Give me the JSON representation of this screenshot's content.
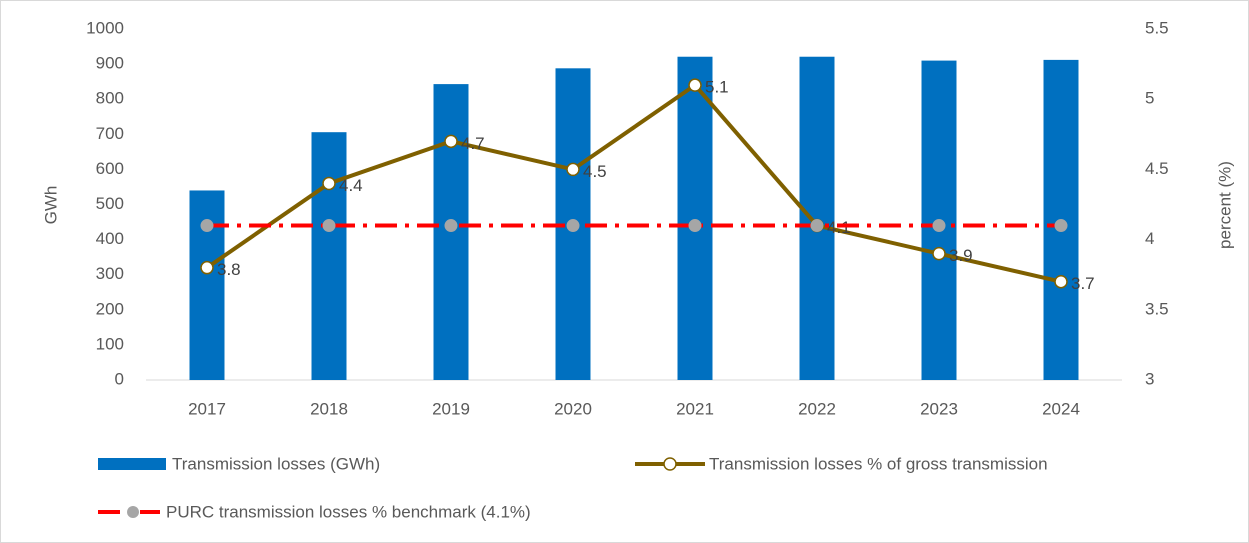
{
  "chart_data": {
    "type": "bar",
    "categories": [
      "2017",
      "2018",
      "2019",
      "2020",
      "2021",
      "2022",
      "2023",
      "2024"
    ],
    "y_label": "GWh",
    "y2_label": "percent (%)",
    "ylim": [
      0,
      1000
    ],
    "yticks": [
      0,
      100,
      200,
      300,
      400,
      500,
      600,
      700,
      800,
      900,
      1000
    ],
    "y2lim": [
      3,
      5.5
    ],
    "y2ticks": [
      3,
      3.5,
      4,
      4.5,
      5,
      5.5
    ],
    "series": [
      {
        "name": "Transmission losses (GWh)",
        "type": "bar",
        "color": "#0070c0",
        "values": [
          540,
          706,
          843,
          888,
          921,
          921,
          910,
          912
        ]
      },
      {
        "name": "Transmission losses % of gross transmission",
        "type": "line",
        "axis": "y2",
        "color": "#7f6000",
        "values": [
          3.8,
          4.4,
          4.7,
          4.5,
          5.1,
          4.1,
          3.9,
          3.7
        ],
        "data_labels": true
      },
      {
        "name": "PURC transmission losses % benchmark (4.1%)",
        "type": "dashdot",
        "axis": "y2",
        "color": "#ff0000",
        "values": [
          4.1,
          4.1,
          4.1,
          4.1,
          4.1,
          4.1,
          4.1,
          4.1
        ]
      }
    ]
  }
}
